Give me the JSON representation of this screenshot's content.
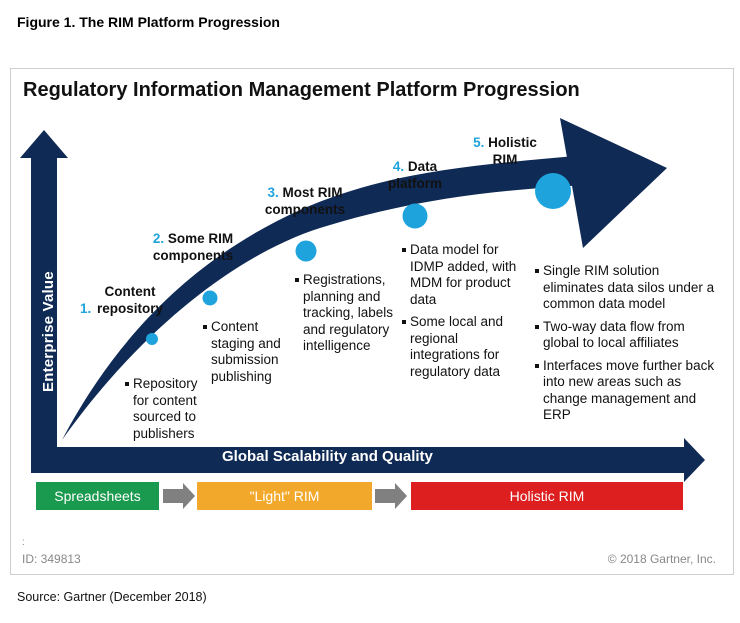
{
  "figure_title": "Figure 1. The RIM Platform Progression",
  "main_title": "Regulatory Information Management Platform Progression",
  "axes": {
    "y_label": "Enterprise Value",
    "x_label": "Global Scalability and Quality"
  },
  "stages": [
    {
      "num": "1.",
      "title": "Content repository",
      "bullets": [
        "Repository for content sourced to publishers"
      ]
    },
    {
      "num": "2.",
      "title": "Some RIM components",
      "bullets": [
        "Content staging and submission publishing"
      ]
    },
    {
      "num": "3.",
      "title": "Most RIM components",
      "bullets": [
        "Registrations, planning and tracking, labels and regulatory intelligence"
      ]
    },
    {
      "num": "4.",
      "title": "Data platform",
      "bullets": [
        "Data model for IDMP added, with MDM for product data",
        "Some local and regional integrations for regulatory data"
      ]
    },
    {
      "num": "5.",
      "title": "Holistic RIM",
      "bullets": [
        "Single RIM solution eliminates data silos under a common data model",
        "Two-way data flow from global to local affiliates",
        "Interfaces move further back into new areas such as change management and ERP"
      ]
    }
  ],
  "phase_boxes": [
    {
      "label": "Spreadsheets",
      "color": "#1a9a4e"
    },
    {
      "label": "\"Light\" RIM",
      "color": "#f2a82b"
    },
    {
      "label": "Holistic RIM",
      "color": "#dd1f1f"
    }
  ],
  "colors": {
    "navy": "#0f2a55",
    "accent_blue": "#1fa3dd",
    "grey_arrow": "#808080"
  },
  "id_colon": ":",
  "id_text": "ID: 349813",
  "copyright": "© 2018 Gartner, Inc.",
  "source": "Source: Gartner (December 2018)"
}
